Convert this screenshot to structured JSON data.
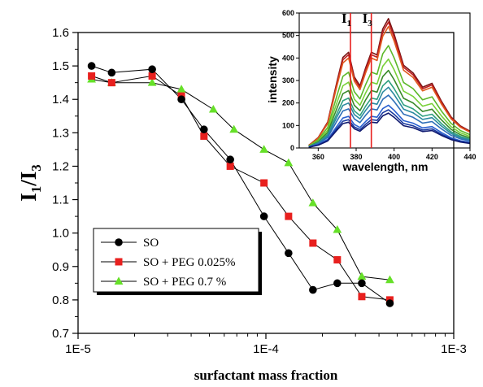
{
  "chart_data": [
    {
      "type": "line",
      "xscale": "log",
      "xlim": [
        1e-05,
        0.001
      ],
      "ylim": [
        0.7,
        1.6
      ],
      "xlabel": "surfactant mass fraction",
      "ylabel_main": "I",
      "ylabel_sub1": "1",
      "ylabel_slash": "/I",
      "ylabel_sub3": "3",
      "x_tick_values": [
        1e-05,
        0.0001,
        0.001
      ],
      "x_tick_labels": [
        "1E-5",
        "1E-4",
        "1E-3"
      ],
      "y_tick_values": [
        0.7,
        0.8,
        0.9,
        1.0,
        1.1,
        1.2,
        1.3,
        1.4,
        1.5,
        1.6
      ],
      "y_tick_labels": [
        "0.7",
        "0.8",
        "0.9",
        "1.0",
        "1.1",
        "1.2",
        "1.3",
        "1.4",
        "1.5",
        "1.6"
      ],
      "legend_position": "bottom-left",
      "series": [
        {
          "name": "SO",
          "color": "#000000",
          "marker": "circle",
          "x": [
            1.18e-05,
            1.51e-05,
            2.48e-05,
            3.55e-05,
            4.68e-05,
            6.46e-05,
            9.77e-05,
            0.000132,
            0.000178,
            0.00024,
            0.000324,
            0.000457
          ],
          "y": [
            1.5,
            1.48,
            1.49,
            1.4,
            1.31,
            1.22,
            1.05,
            0.94,
            0.83,
            0.85,
            0.85,
            0.79
          ]
        },
        {
          "name": "SO + PEG 0.025%",
          "color": "#e8201e",
          "marker": "square",
          "x": [
            1.18e-05,
            1.51e-05,
            2.48e-05,
            3.55e-05,
            4.68e-05,
            6.46e-05,
            9.77e-05,
            0.000132,
            0.000178,
            0.00024,
            0.000324,
            0.000457
          ],
          "y": [
            1.47,
            1.45,
            1.47,
            1.41,
            1.29,
            1.2,
            1.15,
            1.05,
            0.97,
            0.92,
            0.81,
            0.8
          ]
        },
        {
          "name": "SO + PEG 0.7 %",
          "color": "#66e028",
          "marker": "triangle",
          "x": [
            1.18e-05,
            1.51e-05,
            2.48e-05,
            3.55e-05,
            5.25e-05,
            6.76e-05,
            9.77e-05,
            0.000132,
            0.000178,
            0.00024,
            0.000324,
            0.000457
          ],
          "y": [
            1.46,
            1.45,
            1.45,
            1.43,
            1.37,
            1.31,
            1.25,
            1.21,
            1.09,
            1.01,
            0.87,
            0.86
          ]
        }
      ]
    },
    {
      "type": "line",
      "xlabel": "wavelength, nm",
      "ylabel": "intensity",
      "xlim": [
        350,
        440
      ],
      "ylim": [
        0,
        600
      ],
      "x_tick_values": [
        360,
        380,
        400,
        420,
        440
      ],
      "x_tick_labels": [
        "360",
        "380",
        "400",
        "420",
        "440"
      ],
      "y_tick_values": [
        0,
        100,
        200,
        300,
        400,
        500,
        600
      ],
      "y_tick_labels": [
        "0",
        "100",
        "200",
        "300",
        "400",
        "500",
        "600"
      ],
      "annotations": [
        {
          "main": "I",
          "sub": "1",
          "x": 377,
          "color": "#e8201e"
        },
        {
          "main": "I",
          "sub": "3",
          "x": 388,
          "color": "#e8201e"
        }
      ],
      "spectrum_x": [
        355,
        360,
        365,
        370,
        373,
        376,
        379,
        382,
        385,
        388,
        391,
        394,
        397,
        400,
        405,
        410,
        415,
        420,
        425,
        430,
        435,
        440
      ],
      "spectrum_shape": [
        0.02,
        0.08,
        0.2,
        0.52,
        0.7,
        0.74,
        0.55,
        0.48,
        0.62,
        0.74,
        0.72,
        0.92,
        1.0,
        0.88,
        0.64,
        0.58,
        0.47,
        0.5,
        0.36,
        0.24,
        0.17,
        0.13
      ],
      "spectrum_series": [
        {
          "peak": 575,
          "color": "#7a1414"
        },
        {
          "peak": 560,
          "color": "#c01e1e"
        },
        {
          "peak": 540,
          "color": "#e05a1e"
        },
        {
          "peak": 455,
          "color": "#5cb82a"
        },
        {
          "peak": 395,
          "color": "#78d038"
        },
        {
          "peak": 345,
          "color": "#3a8a2a"
        },
        {
          "peak": 300,
          "color": "#30a080"
        },
        {
          "peak": 270,
          "color": "#2a8aa0"
        },
        {
          "peak": 235,
          "color": "#2f6fb8"
        },
        {
          "peak": 190,
          "color": "#2a60d0"
        },
        {
          "peak": 170,
          "color": "#1a3aa0"
        },
        {
          "peak": 155,
          "color": "#101a70"
        }
      ]
    }
  ]
}
